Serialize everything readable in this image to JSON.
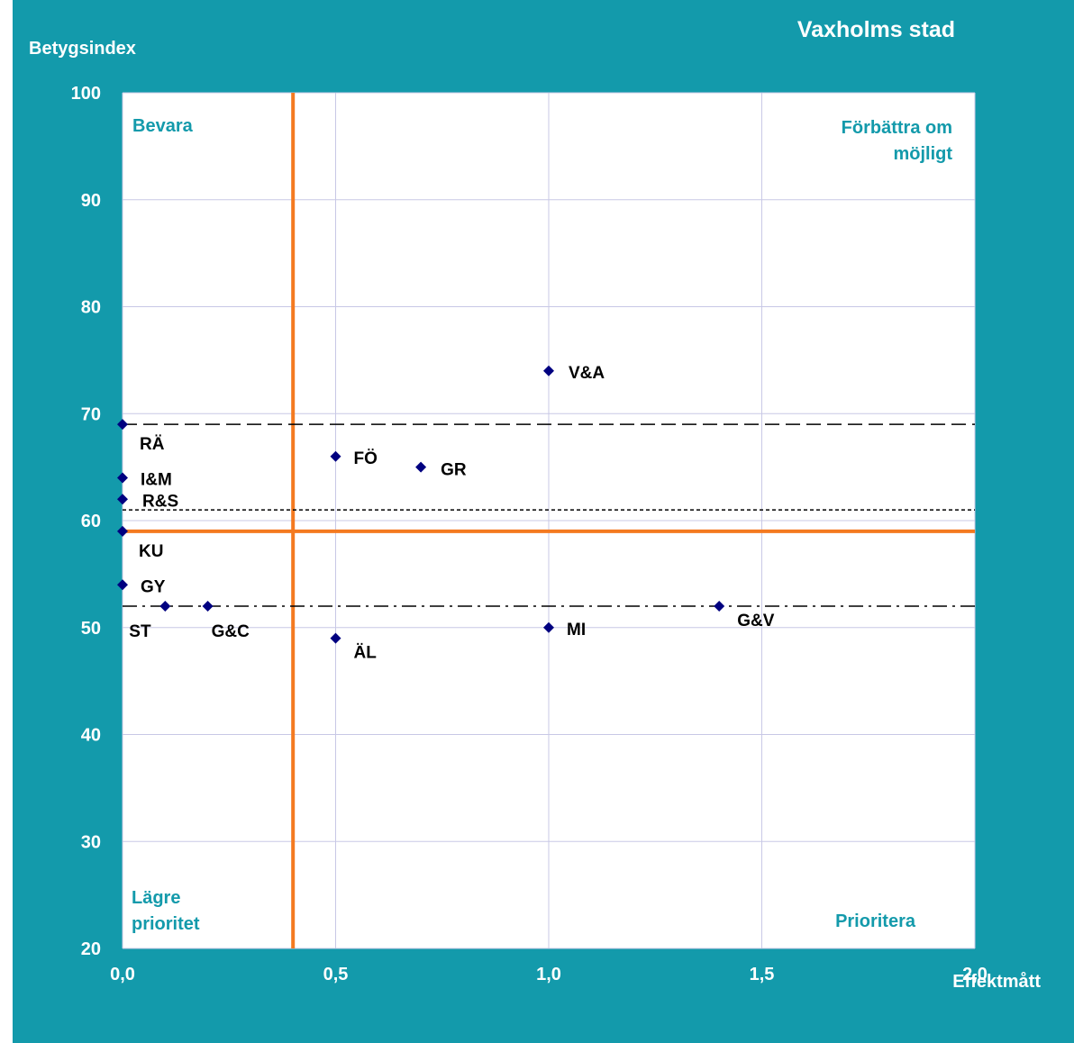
{
  "chart_data": {
    "type": "scatter",
    "title": "Vaxholms stad",
    "ylabel": "Betygsindex",
    "xlabel": "Effektmått",
    "xlim": [
      0,
      2
    ],
    "ylim": [
      20,
      100
    ],
    "x_ticks": [
      "0,0",
      "0,5",
      "1,0",
      "1,5",
      "2,0"
    ],
    "y_ticks": [
      "100",
      "90",
      "80",
      "70",
      "60",
      "50",
      "40",
      "30",
      "20"
    ],
    "grid": true,
    "points": [
      {
        "label": "V&A",
        "x": 1.0,
        "y": 74
      },
      {
        "label": "RÄ",
        "x": 0.0,
        "y": 69
      },
      {
        "label": "FÖ",
        "x": 0.5,
        "y": 66
      },
      {
        "label": "GR",
        "x": 0.7,
        "y": 65
      },
      {
        "label": "I&M",
        "x": 0.0,
        "y": 64
      },
      {
        "label": "R&S",
        "x": 0.0,
        "y": 62
      },
      {
        "label": "KU",
        "x": 0.0,
        "y": 59
      },
      {
        "label": "GY",
        "x": 0.0,
        "y": 54
      },
      {
        "label": "ST",
        "x": 0.1,
        "y": 52
      },
      {
        "label": "G&C",
        "x": 0.2,
        "y": 52
      },
      {
        "label": "G&V",
        "x": 1.4,
        "y": 52
      },
      {
        "label": "MI",
        "x": 1.0,
        "y": 50
      },
      {
        "label": "ÄL",
        "x": 0.5,
        "y": 49
      }
    ],
    "reference_lines": [
      {
        "orientation": "vertical",
        "value": 0.4,
        "style": "solid",
        "color": "#f47a20"
      },
      {
        "orientation": "horizontal",
        "value": 59,
        "style": "solid",
        "color": "#f47a20"
      },
      {
        "orientation": "horizontal",
        "value": 69,
        "style": "dashed",
        "color": "#000000"
      },
      {
        "orientation": "horizontal",
        "value": 61,
        "style": "dotted",
        "color": "#000000"
      },
      {
        "orientation": "horizontal",
        "value": 52,
        "style": "dash-dot",
        "color": "#000000"
      }
    ],
    "quadrant_labels": {
      "top_left": "Bevara",
      "top_right": [
        "Förbättra om",
        "möjligt"
      ],
      "bottom_left": [
        "Lägre",
        "prioritet"
      ],
      "bottom_right": "Prioritera"
    },
    "colors": {
      "background": "#139aab",
      "plot_area": "#ffffff",
      "gridline": "#c8c8e6",
      "marker": "#000080",
      "accent": "#f47a20",
      "quadrant_text": "#139aab"
    }
  }
}
